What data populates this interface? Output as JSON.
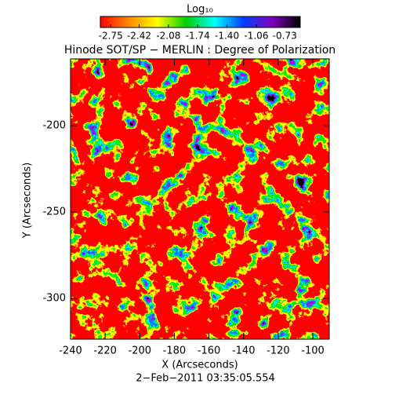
{
  "chart_data": {
    "type": "heatmap",
    "title": "Hinode SOT/SP − MERLIN : Degree of Polarization",
    "date": "2−Feb−2011 03:35:05.554",
    "xlabel": "X (Arcseconds)",
    "ylabel": "Y (Arcseconds)",
    "xlim": [
      -240,
      -90.5
    ],
    "ylim": [
      -323.6,
      -161.4
    ],
    "xticks": [
      -240,
      -220,
      -200,
      -180,
      -160,
      -140,
      -120,
      -100
    ],
    "yticks": [
      -300,
      -250,
      -200
    ],
    "colorbar_label": "Log₁₀",
    "clim": [
      -2.87,
      -0.55
    ],
    "cticks": [
      -2.75,
      -2.42,
      -2.08,
      -1.74,
      {
        "value": -1.4,
        "label": "-1.40"
      },
      -1.06,
      -0.73
    ],
    "colors": [
      "#ff0000",
      "#ff8c00",
      "#ffff00",
      "#00d000",
      "#00ffff",
      "#0040ff",
      "#8000c0",
      "#000000"
    ]
  }
}
